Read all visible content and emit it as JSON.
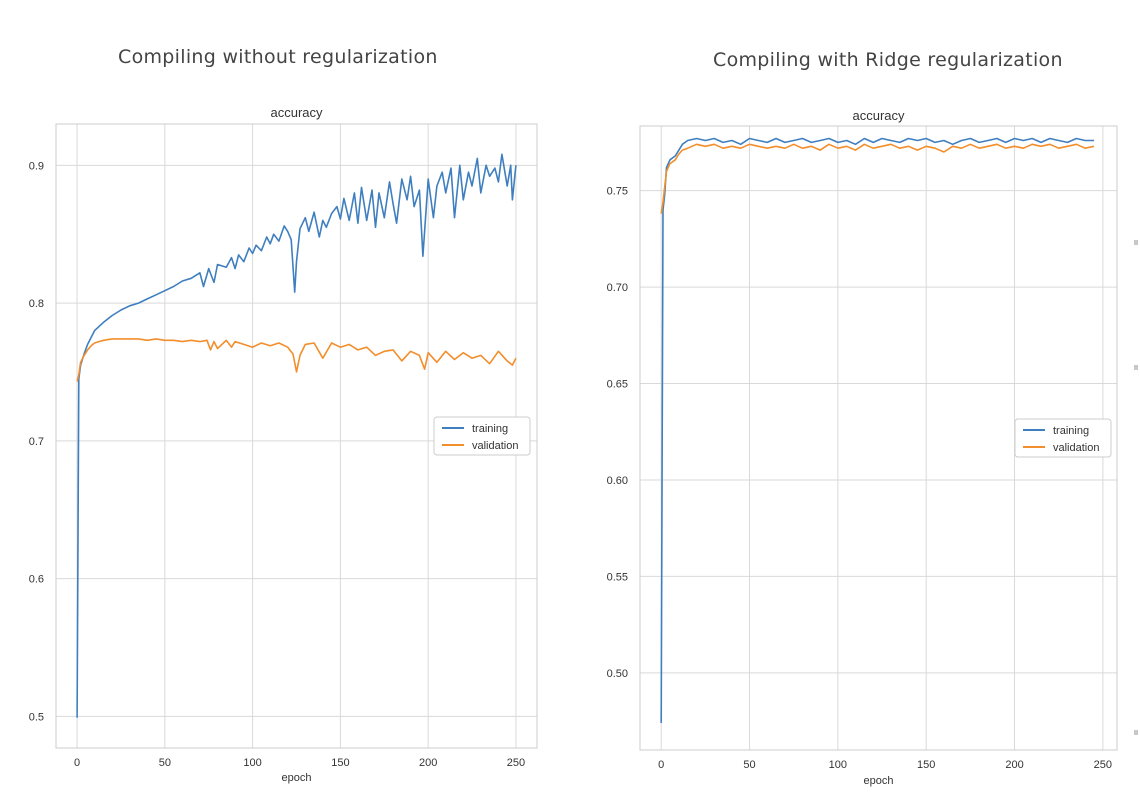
{
  "headings": [
    "Compiling without regularization",
    "Compiling with Ridge regularization"
  ],
  "chart_data": [
    {
      "type": "line",
      "title": "accuracy",
      "xlabel": "epoch",
      "ylabel": "",
      "xlim": [
        -12,
        262
      ],
      "ylim": [
        0.477,
        0.93
      ],
      "xticks": [
        0,
        50,
        100,
        150,
        200,
        250
      ],
      "yticks": [
        0.5,
        0.6,
        0.7,
        0.8,
        0.9
      ],
      "ytick_labels": [
        "0.5",
        "0.6",
        "0.7",
        "0.8",
        "0.9"
      ],
      "grid": true,
      "legend_position": "center-right",
      "series": [
        {
          "name": "training",
          "color": "#3f7fbf",
          "x": [
            0,
            1,
            2,
            4,
            6,
            8,
            10,
            15,
            20,
            25,
            30,
            35,
            40,
            45,
            50,
            55,
            60,
            65,
            70,
            72,
            75,
            78,
            80,
            85,
            88,
            90,
            92,
            95,
            98,
            100,
            102,
            105,
            108,
            110,
            112,
            115,
            118,
            120,
            122,
            124,
            125,
            127,
            130,
            132,
            135,
            138,
            140,
            142,
            145,
            148,
            150,
            152,
            155,
            158,
            160,
            162,
            165,
            168,
            170,
            172,
            175,
            178,
            180,
            182,
            185,
            188,
            190,
            192,
            195,
            197,
            200,
            203,
            205,
            208,
            210,
            213,
            215,
            218,
            220,
            223,
            225,
            228,
            230,
            233,
            235,
            238,
            240,
            242,
            245,
            247,
            248,
            250
          ],
          "values": [
            0.499,
            0.745,
            0.755,
            0.763,
            0.77,
            0.775,
            0.78,
            0.786,
            0.791,
            0.795,
            0.798,
            0.8,
            0.803,
            0.806,
            0.809,
            0.812,
            0.816,
            0.818,
            0.822,
            0.812,
            0.825,
            0.815,
            0.828,
            0.826,
            0.833,
            0.825,
            0.835,
            0.83,
            0.84,
            0.836,
            0.842,
            0.838,
            0.848,
            0.843,
            0.85,
            0.845,
            0.856,
            0.852,
            0.846,
            0.808,
            0.83,
            0.854,
            0.862,
            0.852,
            0.866,
            0.848,
            0.86,
            0.855,
            0.865,
            0.87,
            0.861,
            0.876,
            0.86,
            0.88,
            0.858,
            0.884,
            0.86,
            0.882,
            0.855,
            0.88,
            0.862,
            0.888,
            0.872,
            0.858,
            0.89,
            0.875,
            0.892,
            0.87,
            0.882,
            0.834,
            0.89,
            0.862,
            0.885,
            0.895,
            0.88,
            0.898,
            0.862,
            0.9,
            0.875,
            0.895,
            0.885,
            0.905,
            0.88,
            0.9,
            0.892,
            0.898,
            0.888,
            0.908,
            0.885,
            0.9,
            0.875,
            0.9
          ]
        },
        {
          "name": "validation",
          "color": "#f28e2b",
          "x": [
            0,
            1,
            2,
            4,
            6,
            8,
            10,
            15,
            20,
            25,
            30,
            35,
            40,
            45,
            50,
            55,
            60,
            65,
            70,
            74,
            76,
            78,
            80,
            85,
            88,
            90,
            95,
            100,
            105,
            110,
            115,
            120,
            123,
            125,
            127,
            130,
            135,
            140,
            145,
            150,
            155,
            160,
            165,
            170,
            175,
            180,
            185,
            190,
            195,
            198,
            200,
            205,
            210,
            215,
            220,
            225,
            230,
            235,
            240,
            245,
            248,
            250
          ],
          "values": [
            0.743,
            0.748,
            0.757,
            0.762,
            0.766,
            0.769,
            0.771,
            0.773,
            0.774,
            0.774,
            0.774,
            0.774,
            0.773,
            0.774,
            0.773,
            0.773,
            0.772,
            0.773,
            0.772,
            0.773,
            0.766,
            0.772,
            0.767,
            0.773,
            0.768,
            0.772,
            0.77,
            0.768,
            0.771,
            0.769,
            0.771,
            0.768,
            0.763,
            0.75,
            0.762,
            0.77,
            0.771,
            0.76,
            0.771,
            0.768,
            0.77,
            0.766,
            0.768,
            0.762,
            0.765,
            0.766,
            0.758,
            0.765,
            0.762,
            0.752,
            0.764,
            0.757,
            0.765,
            0.759,
            0.764,
            0.76,
            0.762,
            0.756,
            0.765,
            0.758,
            0.755,
            0.76
          ]
        }
      ]
    },
    {
      "type": "line",
      "title": "accuracy",
      "xlabel": "epoch",
      "ylabel": "",
      "xlim": [
        -12,
        258
      ],
      "ylim": [
        0.46,
        0.7835
      ],
      "xticks": [
        0,
        50,
        100,
        150,
        200,
        250
      ],
      "yticks": [
        0.5,
        0.55,
        0.6,
        0.65,
        0.7,
        0.75
      ],
      "ytick_labels": [
        "0.50",
        "0.55",
        "0.60",
        "0.65",
        "0.70",
        "0.75"
      ],
      "grid": true,
      "legend_position": "center-right",
      "series": [
        {
          "name": "training",
          "color": "#3f7fbf",
          "x": [
            0,
            1,
            2,
            3,
            5,
            8,
            10,
            12,
            15,
            20,
            25,
            30,
            35,
            40,
            45,
            50,
            55,
            60,
            65,
            70,
            75,
            80,
            85,
            90,
            95,
            100,
            105,
            110,
            115,
            120,
            125,
            130,
            135,
            140,
            145,
            150,
            155,
            160,
            165,
            170,
            175,
            180,
            185,
            190,
            195,
            200,
            205,
            210,
            215,
            220,
            225,
            230,
            235,
            240,
            245
          ],
          "values": [
            0.474,
            0.74,
            0.748,
            0.762,
            0.766,
            0.768,
            0.771,
            0.774,
            0.776,
            0.777,
            0.776,
            0.777,
            0.775,
            0.776,
            0.774,
            0.777,
            0.776,
            0.775,
            0.777,
            0.775,
            0.776,
            0.777,
            0.775,
            0.776,
            0.777,
            0.775,
            0.776,
            0.774,
            0.777,
            0.775,
            0.777,
            0.776,
            0.775,
            0.777,
            0.776,
            0.777,
            0.775,
            0.776,
            0.774,
            0.776,
            0.777,
            0.775,
            0.776,
            0.777,
            0.775,
            0.777,
            0.776,
            0.777,
            0.775,
            0.777,
            0.776,
            0.775,
            0.777,
            0.776,
            0.776
          ]
        },
        {
          "name": "validation",
          "color": "#f28e2b",
          "x": [
            0,
            1,
            2,
            3,
            5,
            8,
            10,
            12,
            15,
            20,
            25,
            30,
            35,
            40,
            45,
            50,
            55,
            60,
            65,
            70,
            75,
            80,
            85,
            90,
            95,
            100,
            105,
            110,
            115,
            120,
            125,
            130,
            135,
            140,
            145,
            150,
            155,
            160,
            165,
            170,
            175,
            180,
            185,
            190,
            195,
            200,
            205,
            210,
            215,
            220,
            225,
            230,
            235,
            240,
            245
          ],
          "values": [
            0.738,
            0.744,
            0.752,
            0.76,
            0.764,
            0.766,
            0.769,
            0.771,
            0.772,
            0.774,
            0.773,
            0.774,
            0.772,
            0.773,
            0.772,
            0.774,
            0.773,
            0.772,
            0.773,
            0.772,
            0.774,
            0.772,
            0.773,
            0.771,
            0.774,
            0.772,
            0.773,
            0.771,
            0.774,
            0.772,
            0.773,
            0.774,
            0.772,
            0.773,
            0.771,
            0.773,
            0.772,
            0.77,
            0.773,
            0.772,
            0.774,
            0.772,
            0.773,
            0.774,
            0.772,
            0.773,
            0.772,
            0.774,
            0.773,
            0.774,
            0.772,
            0.773,
            0.774,
            0.772,
            0.773
          ]
        }
      ]
    }
  ]
}
